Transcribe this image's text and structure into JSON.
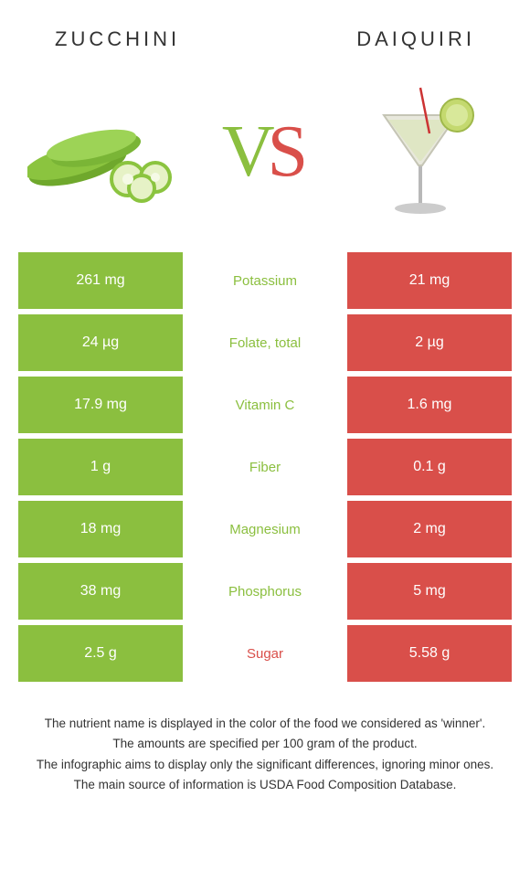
{
  "header": {
    "left_title": "Zucchini",
    "right_title": "Daiquiri"
  },
  "vs": {
    "v": "V",
    "s": "S"
  },
  "colors": {
    "left": "#8bbf3f",
    "right": "#d94f4a",
    "left_winner": "#8bbf3f",
    "right_winner": "#d94f4a"
  },
  "comparison": {
    "rows": [
      {
        "left": "261 mg",
        "label": "Potassium",
        "right": "21 mg",
        "winner": "left"
      },
      {
        "left": "24 µg",
        "label": "Folate, total",
        "right": "2 µg",
        "winner": "left"
      },
      {
        "left": "17.9 mg",
        "label": "Vitamin C",
        "right": "1.6 mg",
        "winner": "left"
      },
      {
        "left": "1 g",
        "label": "Fiber",
        "right": "0.1 g",
        "winner": "left"
      },
      {
        "left": "18 mg",
        "label": "Magnesium",
        "right": "2 mg",
        "winner": "left"
      },
      {
        "left": "38 mg",
        "label": "Phosphorus",
        "right": "5 mg",
        "winner": "left"
      },
      {
        "left": "2.5 g",
        "label": "Sugar",
        "right": "5.58 g",
        "winner": "right"
      }
    ]
  },
  "notes": [
    "The nutrient name is displayed in the color of the food we considered as 'winner'.",
    "The amounts are specified per 100 gram of the product.",
    "The infographic aims to display only the significant differences, ignoring minor ones.",
    "The main source of information is USDA Food Composition Database."
  ]
}
